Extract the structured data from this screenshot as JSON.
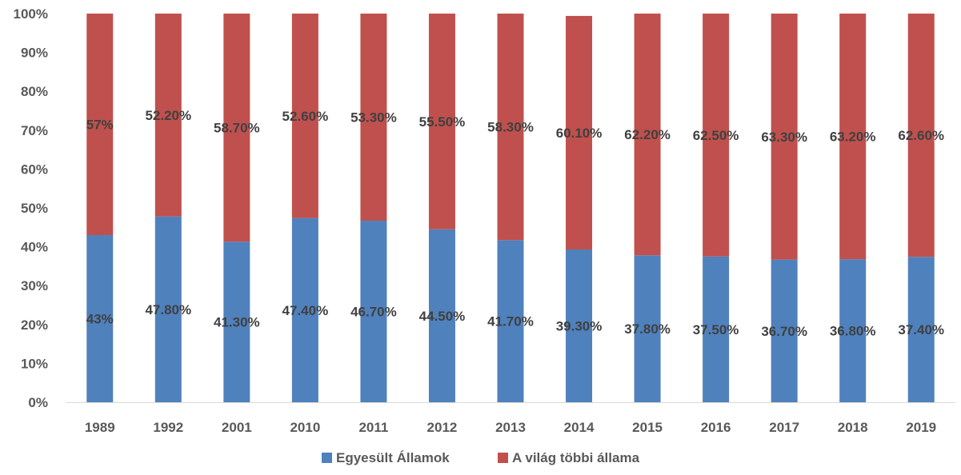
{
  "chart_data": {
    "type": "bar",
    "stacked": true,
    "percent": true,
    "categories": [
      "1989",
      "1992",
      "2001",
      "2010",
      "2011",
      "2012",
      "2013",
      "2014",
      "2015",
      "2016",
      "2017",
      "2018",
      "2019"
    ],
    "series": [
      {
        "name": "Egyesült Államok",
        "color": "#4F81BD",
        "values": [
          43,
          47.8,
          41.3,
          47.4,
          46.7,
          44.5,
          41.7,
          39.3,
          37.8,
          37.5,
          36.7,
          36.8,
          37.4
        ],
        "labels": [
          "43%",
          "47.80%",
          "41.30%",
          "47.40%",
          "46.70%",
          "44.50%",
          "41.70%",
          "39.30%",
          "37.80%",
          "37.50%",
          "36.70%",
          "36.80%",
          "37.40%"
        ]
      },
      {
        "name": "A világ többi állama",
        "color": "#C0504D",
        "values": [
          57,
          52.2,
          58.7,
          52.6,
          53.3,
          55.5,
          58.3,
          60.1,
          62.2,
          62.5,
          63.3,
          63.2,
          62.6
        ],
        "labels": [
          "57%",
          "52.20%",
          "58.70%",
          "52.60%",
          "53.30%",
          "55.50%",
          "58.30%",
          "60.10%",
          "62.20%",
          "62.50%",
          "63.30%",
          "63.20%",
          "62.60%"
        ]
      }
    ],
    "ylim": [
      0,
      100
    ],
    "yticks": [
      "0%",
      "10%",
      "20%",
      "30%",
      "40%",
      "50%",
      "60%",
      "70%",
      "80%",
      "90%",
      "100%"
    ],
    "grid": false,
    "legend_position": "bottom"
  }
}
